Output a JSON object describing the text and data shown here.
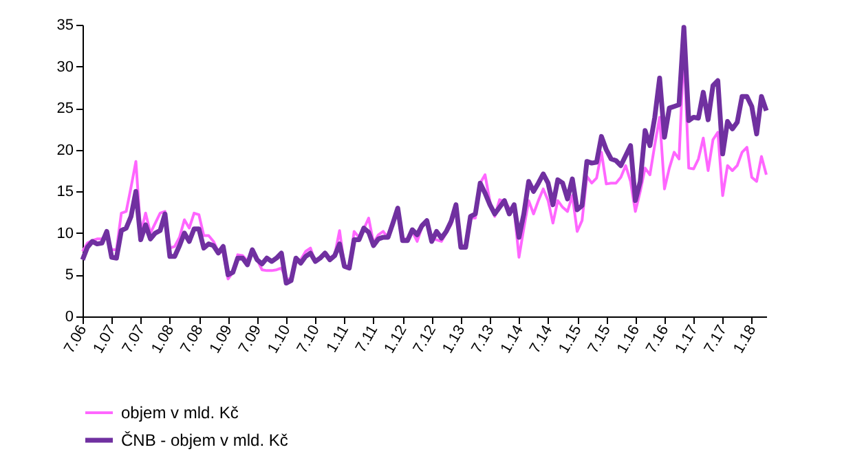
{
  "chart_data": {
    "type": "line",
    "categories": [
      "7.06",
      null,
      null,
      null,
      null,
      null,
      "1.07",
      null,
      null,
      null,
      null,
      null,
      "7.07",
      null,
      null,
      null,
      null,
      null,
      "1.08",
      null,
      null,
      null,
      null,
      null,
      "7.08",
      null,
      null,
      null,
      null,
      null,
      "1.09",
      null,
      null,
      null,
      null,
      null,
      "7.09",
      null,
      null,
      null,
      null,
      null,
      "1.10",
      null,
      null,
      null,
      null,
      null,
      "7.10",
      null,
      null,
      null,
      null,
      null,
      "1.11",
      null,
      null,
      null,
      null,
      null,
      "7.11",
      null,
      null,
      null,
      null,
      null,
      "1.12",
      null,
      null,
      null,
      null,
      null,
      "7.12",
      null,
      null,
      null,
      null,
      null,
      "1.13",
      null,
      null,
      null,
      null,
      null,
      "7.13",
      null,
      null,
      null,
      null,
      null,
      "1.14",
      null,
      null,
      null,
      null,
      null,
      "7.14",
      null,
      null,
      null,
      null,
      null,
      "1.15",
      null,
      null,
      null,
      null,
      null,
      "7.15",
      null,
      null,
      null,
      null,
      null,
      "1.16",
      null,
      null,
      null,
      null,
      null,
      "7.16",
      null,
      null,
      null,
      null,
      null,
      "1.17",
      null,
      null,
      null,
      null,
      null,
      "7.17",
      null,
      null,
      null,
      null,
      null,
      "1.18",
      null,
      null,
      null
    ],
    "series": [
      {
        "name": "objem v mld. Kč",
        "color": "#ff66ff",
        "values": [
          7.8,
          8.8,
          9.1,
          9.3,
          9.3,
          9.8,
          8,
          8,
          12.4,
          12.6,
          15.5,
          18.6,
          10,
          12.4,
          10,
          11.2,
          12.4,
          12.6,
          8.2,
          8.4,
          9.5,
          11.6,
          10.6,
          12.4,
          12.2,
          9.7,
          9.7,
          9,
          7.8,
          7.7,
          4.5,
          5.3,
          7.4,
          7.3,
          6.7,
          7.8,
          6.8,
          5.6,
          5.5,
          5.5,
          5.6,
          5.8,
          4.5,
          4.5,
          6.6,
          6.8,
          7.8,
          8.2,
          6.5,
          7,
          7.5,
          7,
          7.4,
          10.3,
          6.1,
          5.8,
          10.2,
          9.5,
          10.5,
          11.8,
          8.8,
          9.8,
          10.2,
          9.4,
          11.2,
          12.8,
          9.3,
          9.3,
          10.2,
          9,
          10.7,
          11.3,
          9.3,
          9.2,
          9,
          10,
          11,
          13,
          8.5,
          8.5,
          11.8,
          11.8,
          16,
          17,
          13.8,
          12,
          14,
          13.8,
          13,
          12.8,
          7.1,
          10.6,
          13.9,
          12.3,
          13.9,
          15.3,
          13.9,
          11.2,
          13.9,
          13.1,
          12.6,
          14.5,
          10.2,
          11.5,
          16.8,
          16,
          16.6,
          19.7,
          15.9,
          16,
          16,
          16.7,
          18.1,
          16.2,
          12.6,
          15,
          17.8,
          17,
          20.6,
          23.9,
          15.3,
          17.8,
          19.7,
          18.9,
          32.1,
          17.8,
          17.7,
          18.9,
          21.4,
          17.5,
          21.2,
          22.1,
          14.5,
          18.1,
          17.5,
          18.1,
          19.7,
          20.3,
          16.7,
          16.2,
          19.2,
          17
        ]
      },
      {
        "name": "ČNB - objem v mld. Kč",
        "color": "#7030a0",
        "values": [
          6.8,
          8.3,
          9,
          8.7,
          8.8,
          10.2,
          7.1,
          7,
          10.3,
          10.6,
          12,
          15,
          9.2,
          11,
          9.3,
          10,
          10.3,
          12.3,
          7.2,
          7.2,
          8.5,
          10,
          9,
          10.5,
          10.5,
          8.2,
          8.7,
          8.5,
          7.6,
          8.4,
          5,
          5.3,
          7,
          7,
          6.2,
          8,
          6.8,
          6.3,
          7,
          6.6,
          7,
          7.6,
          4,
          4.3,
          7,
          6.4,
          7.2,
          7.6,
          6.6,
          7,
          7.6,
          6.8,
          7.3,
          8.7,
          6,
          5.8,
          9.2,
          9.2,
          10.6,
          10.1,
          8.5,
          9.3,
          9.5,
          9.5,
          11.2,
          13,
          9.1,
          9.1,
          10.4,
          9.8,
          10.9,
          11.5,
          9,
          10.2,
          9.4,
          10.2,
          11.4,
          13.4,
          8.3,
          8.3,
          12,
          12.3,
          16,
          14.8,
          13.4,
          12.3,
          13.1,
          13.9,
          12.3,
          13.4,
          9.5,
          12.3,
          16.2,
          15,
          16,
          17.1,
          16,
          13.4,
          16.4,
          16,
          14.1,
          16.5,
          12.8,
          13.3,
          18.6,
          18.4,
          18.5,
          21.6,
          20,
          18.9,
          18.7,
          18.1,
          19.3,
          20.5,
          13.9,
          16.2,
          22.3,
          20.5,
          23.9,
          28.6,
          21.5,
          25,
          25.2,
          25.4,
          34.7,
          23.5,
          23.9,
          23.8,
          26.9,
          23.6,
          27.7,
          28.3,
          19.5,
          23.4,
          22.5,
          23.3,
          26.4,
          26.4,
          25.2,
          21.9,
          26.4,
          24.7
        ]
      }
    ],
    "ylim": [
      0,
      35
    ],
    "yticks": [
      0,
      5,
      10,
      15,
      20,
      25,
      30,
      35
    ],
    "grid": false,
    "legend": "bottom",
    "marker": "none",
    "line_style": "solid"
  }
}
